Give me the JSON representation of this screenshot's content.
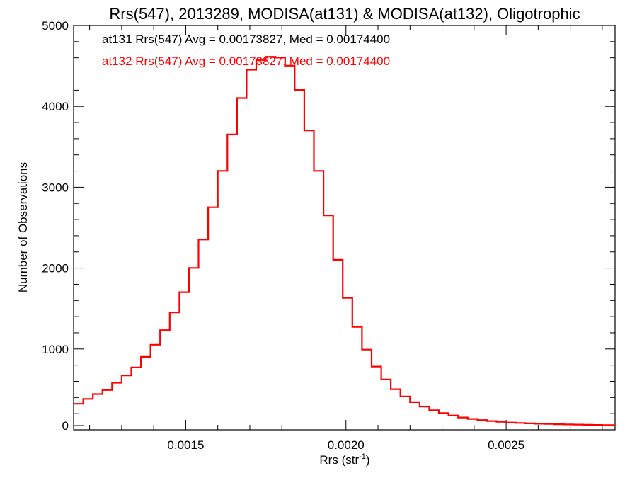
{
  "chart_data": {
    "type": "line",
    "title": "Rrs(547), 2013289, MODISA(at131) & MODISA(at132), Oligotrophic",
    "xlabel_main": "Rrs (str",
    "xlabel_sup": "-1",
    "xlabel_close": ")",
    "ylabel": "Number of Observations",
    "xlim": [
      0.00115,
      0.00284
    ],
    "ylim": [
      0,
      5000
    ],
    "x_ticks": [
      {
        "value": 0.0015,
        "label": "0.0015"
      },
      {
        "value": 0.002,
        "label": "0.0020"
      },
      {
        "value": 0.0025,
        "label": "0.0025"
      }
    ],
    "y_ticks": [
      {
        "value": 0,
        "label": "0"
      },
      {
        "value": 1000,
        "label": "1000"
      },
      {
        "value": 2000,
        "label": "2000"
      },
      {
        "value": 3000,
        "label": "3000"
      },
      {
        "value": 4000,
        "label": "4000"
      },
      {
        "value": 5000,
        "label": "5000"
      }
    ],
    "annotations": [
      {
        "text": "at131 Rrs(547) Avg = 0.00173827, Med = 0.00174400",
        "color": "#000000"
      },
      {
        "text": "at132 Rrs(547) Avg = 0.00173827, Med = 0.00174400",
        "color": "#ff0000"
      }
    ],
    "series": [
      {
        "color": "#ff0000",
        "style": "histogram-step",
        "x": [
          0.00115,
          0.00118,
          0.00121,
          0.00124,
          0.00127,
          0.0013,
          0.00133,
          0.00136,
          0.00139,
          0.00142,
          0.00145,
          0.00148,
          0.00151,
          0.00154,
          0.00157,
          0.0016,
          0.00163,
          0.00166,
          0.00169,
          0.00172,
          0.00175,
          0.00178,
          0.00181,
          0.00184,
          0.00187,
          0.0019,
          0.00193,
          0.00196,
          0.00199,
          0.00202,
          0.00205,
          0.00208,
          0.00211,
          0.00214,
          0.00217,
          0.0022,
          0.00223,
          0.00226,
          0.00229,
          0.00232,
          0.00235,
          0.00238,
          0.00241,
          0.00244,
          0.00247,
          0.0025,
          0.00253,
          0.00256,
          0.00259,
          0.00262,
          0.00265,
          0.00268,
          0.00271,
          0.00274,
          0.00277,
          0.0028,
          0.00283
        ],
        "y": [
          270,
          330,
          390,
          440,
          530,
          620,
          720,
          850,
          1000,
          1180,
          1400,
          1650,
          1950,
          2300,
          2700,
          3150,
          3600,
          4050,
          4400,
          4520,
          4560,
          4550,
          4450,
          4150,
          3650,
          3150,
          2600,
          2050,
          1580,
          1220,
          940,
          730,
          570,
          450,
          360,
          290,
          235,
          190,
          155,
          125,
          100,
          82,
          68,
          56,
          46,
          38,
          32,
          27,
          23,
          20,
          17,
          14,
          12,
          10,
          8,
          6,
          5
        ]
      }
    ],
    "grid": false,
    "legend": "none"
  }
}
